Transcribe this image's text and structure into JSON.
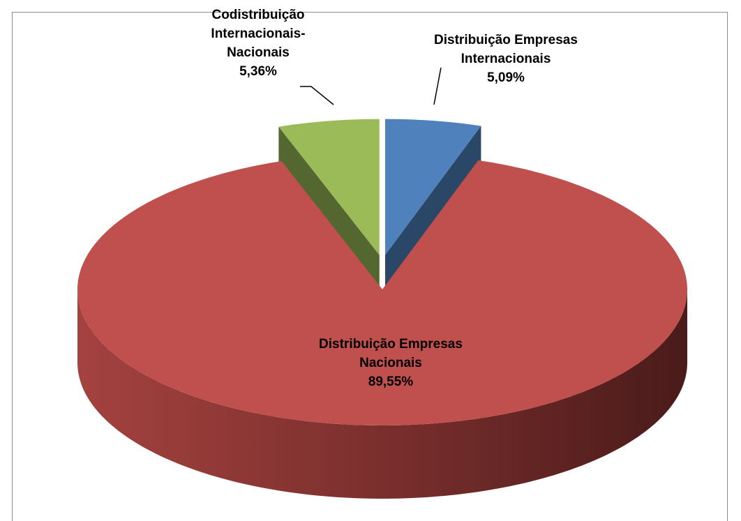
{
  "chart_data": {
    "type": "pie",
    "three_d": true,
    "categories": [
      "Distribuição Empresas Internacionais",
      "Distribuição Empresas Nacionais",
      "Codistribuição Internacionais-Nacionais"
    ],
    "values": [
      5.09,
      89.55,
      5.36
    ],
    "value_labels": [
      "5,09%",
      "89,55%",
      "5,36%"
    ],
    "colors": [
      "#4f81bd",
      "#c0504d",
      "#9bbb59"
    ],
    "exploded": [
      true,
      false,
      true
    ]
  }
}
